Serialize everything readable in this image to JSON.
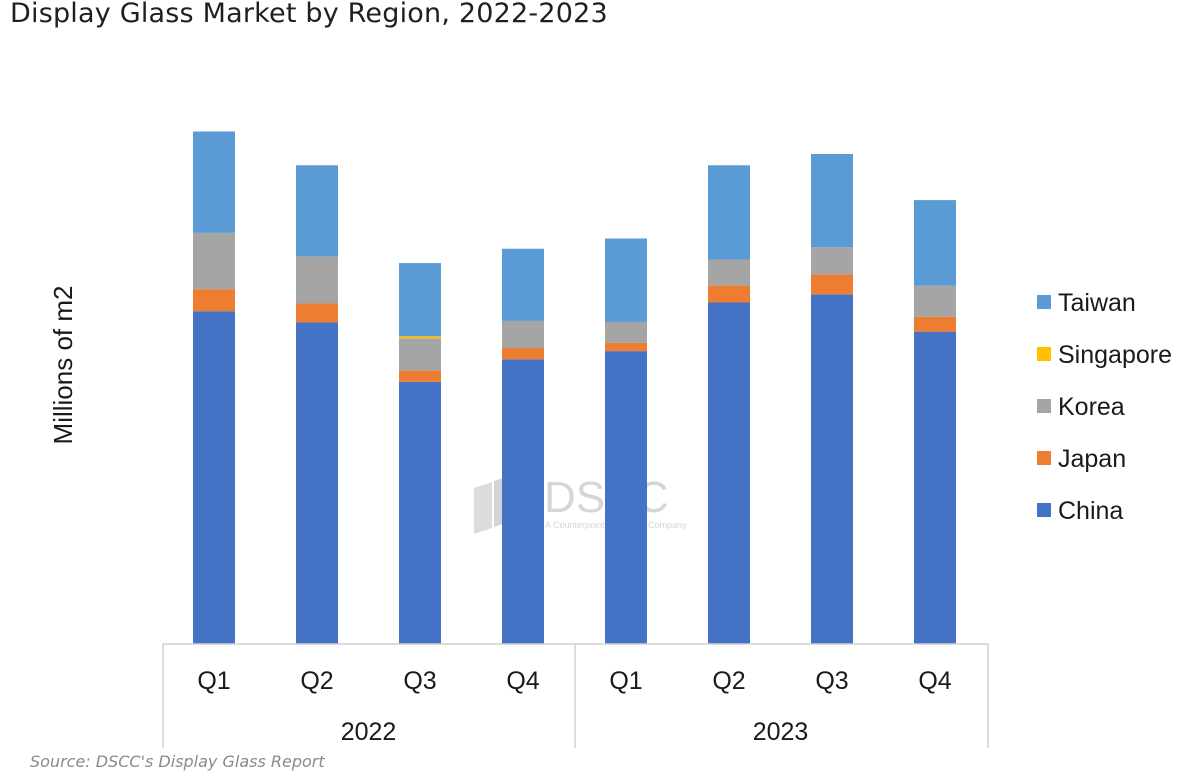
{
  "title": "Display Glass Market by Region, 2022-2023",
  "source": "Source: DSCC's Display Glass Report",
  "watermark": {
    "brand": "DSCC",
    "tagline": "A Counterpoint Research Company"
  },
  "chart_data": {
    "type": "bar",
    "stacked": true,
    "title": "Display Glass Market by Region, 2022-2023",
    "ylabel": "Millions of m2",
    "xlabel": "",
    "ylim": [
      0,
      100
    ],
    "y_ticks_visible": false,
    "grid": false,
    "legend_position": "right",
    "categories": [
      "Q1",
      "Q2",
      "Q3",
      "Q4",
      "Q1",
      "Q2",
      "Q3",
      "Q4"
    ],
    "groups": [
      {
        "label": "2022",
        "count": 4
      },
      {
        "label": "2023",
        "count": 4
      }
    ],
    "series": [
      {
        "name": "China",
        "color": "#4472C4",
        "values": [
          65.0,
          62.8,
          51.2,
          55.6,
          57.2,
          66.7,
          68.3,
          61.0
        ]
      },
      {
        "name": "Japan",
        "color": "#ED7D31",
        "values": [
          4.3,
          3.7,
          2.2,
          2.2,
          1.6,
          3.3,
          3.9,
          2.9
        ]
      },
      {
        "name": "Korea",
        "color": "#A5A5A5",
        "values": [
          11.0,
          9.2,
          6.3,
          5.3,
          4.1,
          5.1,
          5.3,
          6.1
        ]
      },
      {
        "name": "Singapore",
        "color": "#FFC000",
        "values": [
          0,
          0,
          0.4,
          0,
          0,
          0,
          0,
          0
        ]
      },
      {
        "name": "Taiwan",
        "color": "#5B9BD5",
        "values": [
          19.8,
          17.8,
          14.3,
          14.1,
          16.3,
          18.4,
          18.2,
          16.7
        ]
      }
    ],
    "legend_order": [
      "Taiwan",
      "Singapore",
      "Korea",
      "Japan",
      "China"
    ]
  }
}
